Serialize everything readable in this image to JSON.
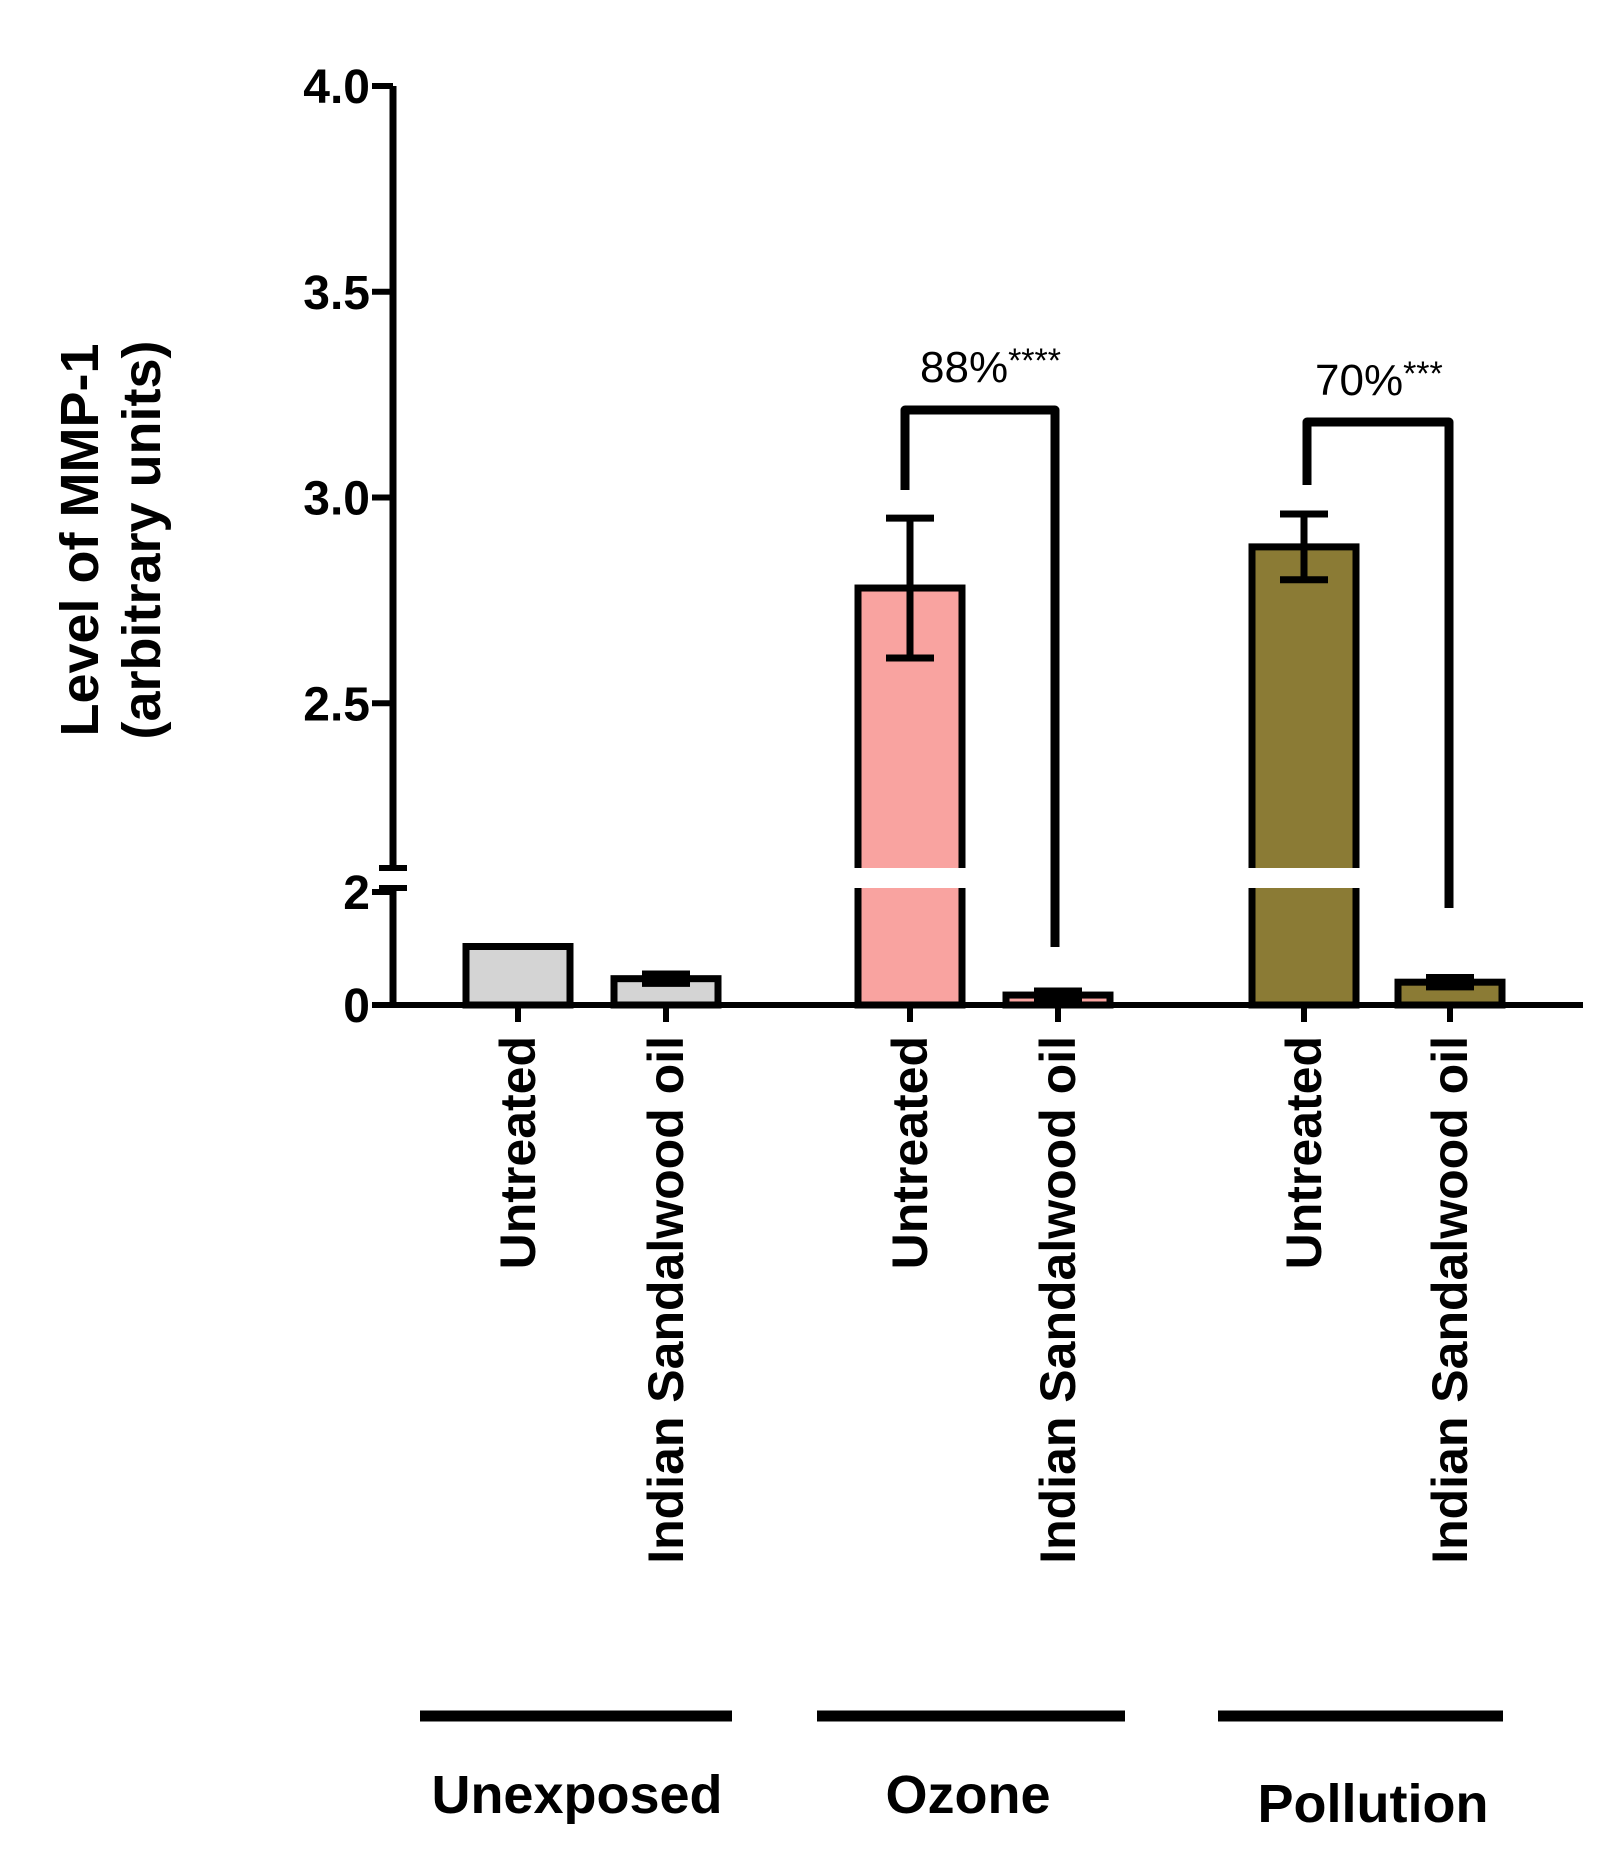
{
  "chart_data": {
    "type": "bar",
    "title": "",
    "ylabel_line1": "Level of MMP-1",
    "ylabel_line2": "(arbitrary units)",
    "xlabel": "",
    "y_axis_break": true,
    "lower_segment": {
      "range": [
        0,
        2
      ],
      "ticks": [
        {
          "value": 0,
          "label": "0"
        },
        {
          "value": 2,
          "label": "2"
        }
      ]
    },
    "upper_segment": {
      "range": [
        2,
        4
      ],
      "ticks": [
        {
          "value": 2.5,
          "label": "2.5"
        },
        {
          "value": 3.0,
          "label": "3.0"
        },
        {
          "value": 3.5,
          "label": "3.5"
        },
        {
          "value": 4.0,
          "label": "4.0"
        }
      ]
    },
    "categories": [
      "Untreated",
      "Indian Sandalwood oil",
      "Untreated",
      "Indian Sandalwood oil",
      "Untreated",
      "Indian Sandalwood oil"
    ],
    "groups": [
      {
        "name": "Unexposed",
        "bars": [
          {
            "label": "Untreated",
            "value": 1.0,
            "error": 0,
            "color": "#d4d4d4"
          },
          {
            "label": "Indian Sandalwood oil",
            "value": 0.45,
            "error": 0.08,
            "color": "#d4d4d4"
          }
        ]
      },
      {
        "name": "Ozone",
        "bars": [
          {
            "label": "Untreated",
            "value": 2.78,
            "error": 0.17,
            "color": "#f9a3a0"
          },
          {
            "label": "Indian Sandalwood oil",
            "value": 0.17,
            "error": 0.07,
            "color": "#f9a3a0"
          }
        ]
      },
      {
        "name": "Pollution",
        "bars": [
          {
            "label": "Untreated",
            "value": 2.88,
            "error": 0.08,
            "color": "#8b7b35"
          },
          {
            "label": "Indian Sandalwood oil",
            "value": 0.39,
            "error": 0.08,
            "color": "#8b7b35"
          }
        ]
      }
    ],
    "annotations": [
      {
        "group": "Ozone",
        "text": "88%",
        "stars": "****"
      },
      {
        "group": "Pollution",
        "text": "70%",
        "stars": "***"
      }
    ]
  }
}
